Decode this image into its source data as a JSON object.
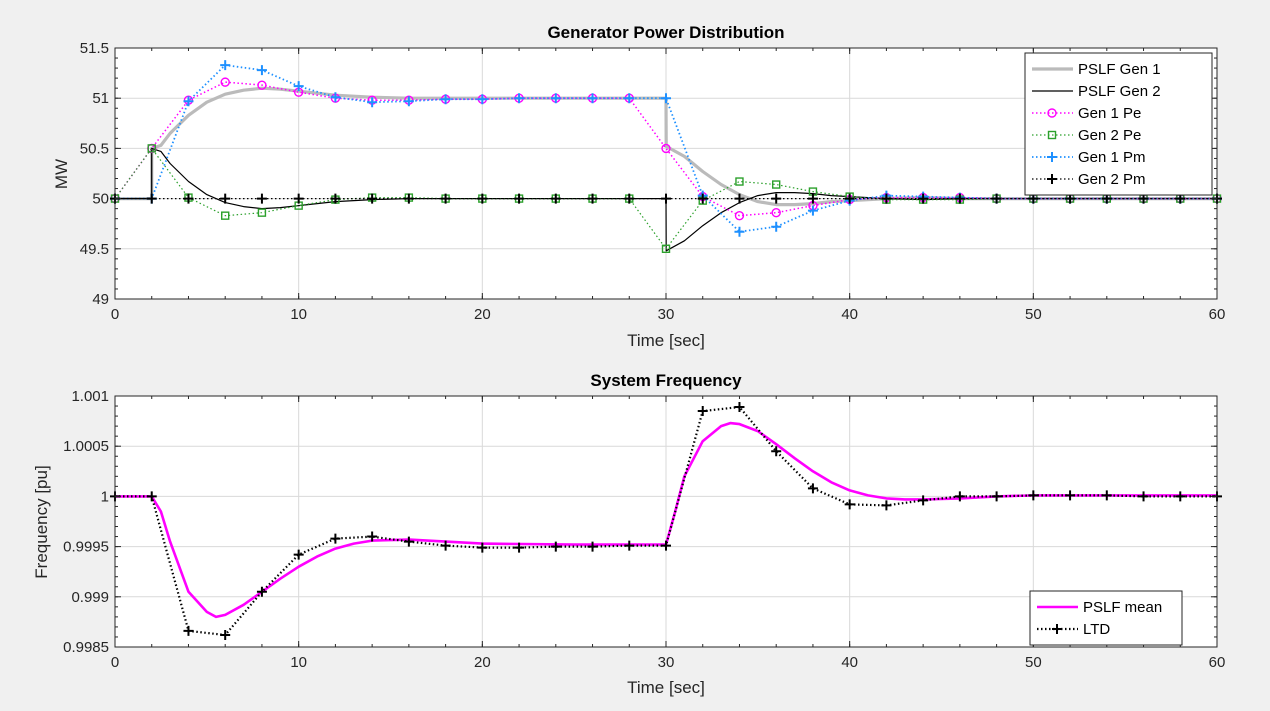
{
  "chart_data": [
    {
      "type": "line",
      "title": "Generator Power Distribution",
      "xlabel": "Time [sec]",
      "ylabel": "MW",
      "xlim": [
        0,
        60
      ],
      "ylim": [
        49,
        51.5
      ],
      "xticks": [
        0,
        10,
        20,
        30,
        40,
        50,
        60
      ],
      "xtick_labels": [
        "0",
        "10",
        "20",
        "30",
        "40",
        "50",
        "60"
      ],
      "yticks": [
        49,
        49.5,
        50,
        50.5,
        51,
        51.5
      ],
      "ytick_labels": [
        "49",
        "49.5",
        "50",
        "50.5",
        "51",
        "51.5"
      ],
      "grid": true,
      "minor_ticks": true,
      "legend_position": "top-right",
      "series": [
        {
          "name": "PSLF Gen 1",
          "color": "#bbbbbb",
          "style": "solid",
          "width": 3.2,
          "marker": "none",
          "x": [
            0,
            2,
            2,
            2.5,
            3,
            4,
            5,
            6,
            7,
            8,
            9,
            10,
            12,
            14,
            16,
            18,
            20,
            25,
            29.99,
            30,
            30.01,
            31,
            32,
            33,
            34,
            35,
            36,
            37,
            38,
            39,
            40,
            42,
            44,
            46,
            50,
            60
          ],
          "y": [
            50,
            50,
            50.5,
            50.53,
            50.65,
            50.83,
            50.96,
            51.04,
            51.08,
            51.1,
            51.09,
            51.07,
            51.03,
            51.01,
            51,
            51,
            51,
            51,
            51,
            51,
            50.52,
            50.42,
            50.27,
            50.14,
            50.04,
            49.97,
            49.94,
            49.94,
            49.95,
            49.97,
            49.98,
            50,
            50.01,
            50,
            50,
            50
          ]
        },
        {
          "name": "PSLF Gen 2",
          "color": "#000000",
          "style": "solid",
          "width": 1.2,
          "marker": "none",
          "x": [
            0,
            2,
            2,
            2.5,
            3,
            4,
            5,
            6,
            7,
            8,
            9,
            10,
            12,
            14,
            16,
            18,
            20,
            25,
            29.99,
            30,
            30.01,
            31,
            32,
            33,
            34,
            35,
            36,
            37,
            38,
            39,
            40,
            42,
            44,
            46,
            50,
            60
          ],
          "y": [
            50,
            50,
            50.5,
            50.47,
            50.35,
            50.17,
            50.04,
            49.96,
            49.92,
            49.9,
            49.91,
            49.93,
            49.97,
            49.99,
            50,
            50,
            50,
            50,
            50,
            50,
            49.48,
            49.58,
            49.73,
            49.86,
            49.96,
            50.03,
            50.06,
            50.06,
            50.05,
            50.03,
            50.02,
            50,
            49.99,
            50,
            50,
            50
          ]
        },
        {
          "name": "Gen 1 Pe",
          "color": "#ff00ff",
          "style": "dotted",
          "width": 1.5,
          "marker": "circle",
          "x": [
            0,
            2,
            4,
            6,
            8,
            10,
            12,
            14,
            16,
            18,
            20,
            22,
            24,
            26,
            28,
            30,
            32,
            34,
            36,
            38,
            40,
            42,
            44,
            46,
            48,
            50,
            52,
            54,
            56,
            58,
            60
          ],
          "y": [
            50,
            50.5,
            50.98,
            51.16,
            51.13,
            51.06,
            51,
            50.98,
            50.98,
            50.99,
            50.99,
            51,
            51,
            51,
            51,
            50.5,
            50.02,
            49.83,
            49.86,
            49.93,
            49.99,
            50.01,
            50.01,
            50.01,
            50,
            50,
            50,
            50,
            50,
            50,
            50
          ]
        },
        {
          "name": "Gen 2 Pe",
          "color": "#2ca02c",
          "style": "dotted",
          "width": 1.2,
          "marker": "square",
          "x": [
            0,
            2,
            4,
            6,
            8,
            10,
            12,
            14,
            16,
            18,
            20,
            22,
            24,
            26,
            28,
            30,
            32,
            34,
            36,
            38,
            40,
            42,
            44,
            46,
            48,
            50,
            52,
            54,
            56,
            58,
            60
          ],
          "y": [
            50,
            50.5,
            50.01,
            49.83,
            49.86,
            49.93,
            49.99,
            50.01,
            50.01,
            50,
            50,
            50,
            50,
            50,
            50,
            49.5,
            49.98,
            50.17,
            50.14,
            50.07,
            50.02,
            49.99,
            49.99,
            49.99,
            50,
            50,
            50,
            50,
            50,
            50,
            50
          ]
        },
        {
          "name": "Gen 1 Pm",
          "color": "#1e90ff",
          "style": "dotted",
          "width": 1.8,
          "marker": "plus",
          "x": [
            0,
            2,
            4,
            6,
            8,
            10,
            12,
            14,
            16,
            18,
            20,
            22,
            24,
            26,
            28,
            30,
            32,
            34,
            36,
            38,
            40,
            42,
            44,
            46,
            48,
            50,
            52,
            54,
            56,
            58,
            60
          ],
          "y": [
            50,
            50,
            50.97,
            51.33,
            51.28,
            51.12,
            51.01,
            50.96,
            50.97,
            50.99,
            50.99,
            51,
            51,
            51,
            51,
            51,
            50.03,
            49.67,
            49.72,
            49.88,
            49.98,
            50.03,
            50.02,
            50.01,
            50,
            50,
            50,
            50,
            50,
            50,
            50
          ]
        },
        {
          "name": "Gen 2 Pm",
          "color": "#000000",
          "style": "dotted",
          "width": 1.2,
          "marker": "plus",
          "x": [
            0,
            2,
            4,
            6,
            8,
            10,
            12,
            14,
            16,
            18,
            20,
            22,
            24,
            26,
            28,
            30,
            32,
            34,
            36,
            38,
            40,
            42,
            44,
            46,
            48,
            50,
            52,
            54,
            56,
            58,
            60
          ],
          "y": [
            50,
            50,
            50,
            50,
            50,
            50,
            50,
            50,
            50,
            50,
            50,
            50,
            50,
            50,
            50,
            50,
            50,
            50,
            50,
            50,
            50,
            50,
            50,
            50,
            50,
            50,
            50,
            50,
            50,
            50,
            50
          ]
        }
      ]
    },
    {
      "type": "line",
      "title": "System Frequency",
      "xlabel": "Time [sec]",
      "ylabel": "Frequency [pu]",
      "xlim": [
        0,
        60
      ],
      "ylim": [
        0.9985,
        1.001
      ],
      "xticks": [
        0,
        10,
        20,
        30,
        40,
        50,
        60
      ],
      "xtick_labels": [
        "0",
        "10",
        "20",
        "30",
        "40",
        "50",
        "60"
      ],
      "yticks": [
        0.9985,
        0.999,
        0.9995,
        1,
        1.0005,
        1.001
      ],
      "ytick_labels": [
        "0.9985",
        "0.999",
        "0.9995",
        "1",
        "1.0005",
        "1.001"
      ],
      "grid": true,
      "minor_ticks": true,
      "legend_position": "bottom-right",
      "series": [
        {
          "name": "PSLF mean",
          "color": "#ff00ff",
          "style": "solid",
          "width": 2.6,
          "marker": "none",
          "x": [
            0,
            2,
            2.5,
            3,
            4,
            5,
            5.5,
            6,
            7,
            8,
            9,
            10,
            11,
            12,
            13,
            14,
            16,
            18,
            20,
            25,
            30,
            30.5,
            31,
            32,
            33,
            33.5,
            34,
            35,
            36,
            37,
            38,
            39,
            40,
            41,
            42,
            43,
            44,
            46,
            48,
            50,
            60
          ],
          "y": [
            1,
            1,
            0.99985,
            0.99955,
            0.99905,
            0.99885,
            0.9988,
            0.99882,
            0.99892,
            0.99905,
            0.99918,
            0.9993,
            0.9994,
            0.99948,
            0.99953,
            0.99956,
            0.99957,
            0.99955,
            0.99953,
            0.99952,
            0.99952,
            0.99985,
            1.0002,
            1.00055,
            1.0007,
            1.00073,
            1.00072,
            1.00065,
            1.00052,
            1.00038,
            1.00025,
            1.00014,
            1.00006,
            1.00001,
            0.99998,
            0.99997,
            0.99997,
            0.99998,
            1,
            1.00001,
            1.00001
          ]
        },
        {
          "name": "LTD",
          "color": "#000000",
          "style": "dotted",
          "width": 2.2,
          "marker": "plus",
          "x": [
            0,
            2,
            4,
            6,
            8,
            10,
            12,
            14,
            16,
            18,
            20,
            22,
            24,
            26,
            28,
            30,
            32,
            34,
            36,
            38,
            40,
            42,
            44,
            46,
            48,
            50,
            52,
            54,
            56,
            58,
            60
          ],
          "y": [
            1,
            1,
            0.99866,
            0.99862,
            0.99905,
            0.99942,
            0.99958,
            0.9996,
            0.99955,
            0.99951,
            0.99949,
            0.99949,
            0.9995,
            0.9995,
            0.99951,
            0.99951,
            1.00085,
            1.00089,
            1.00045,
            1.00008,
            0.99992,
            0.99991,
            0.99996,
            1,
            1,
            1.00001,
            1.00001,
            1.00001,
            1,
            1,
            1
          ]
        }
      ]
    }
  ]
}
